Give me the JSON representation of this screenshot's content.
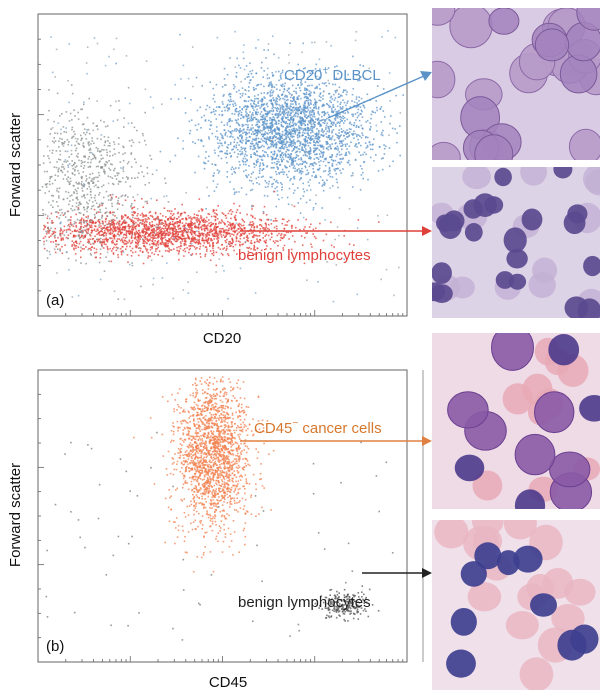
{
  "colors": {
    "dlbcl": "#5b93c8",
    "benign_red": "#e0403a",
    "cancer_orange": "#f2804f",
    "benign_dark": "#555555",
    "gray_events": "#8a8f8f",
    "axis": "#666666"
  },
  "chart_data": [
    {
      "type": "scatter",
      "panel_label": "(a)",
      "xlabel": "CD20",
      "ylabel": "Forward scatter",
      "x_scale": "log",
      "grid": false,
      "populations": [
        {
          "name": "CD20⁺ DLBCL",
          "label_main": "CD20",
          "label_sup": "+",
          "label_tail": " DLBCL",
          "color": "#5b93c8",
          "center": [
            0.68,
            0.38
          ],
          "spread": [
            0.11,
            0.09
          ]
        },
        {
          "name": "benign lymphocytes",
          "color": "#e0403a",
          "center": [
            0.34,
            0.72
          ],
          "spread": [
            0.17,
            0.035
          ]
        },
        {
          "name": "",
          "color": "#8a8f8f",
          "center": [
            0.12,
            0.55
          ],
          "spread": [
            0.08,
            0.12
          ]
        }
      ],
      "annotations": [
        {
          "text": "CD20⁺ DLBCL",
          "arrow_to": "top image (large DLBCL cells)"
        },
        {
          "text": "benign lymphocytes",
          "arrow_to": "second image (small lymphocytes)"
        }
      ]
    },
    {
      "type": "scatter",
      "panel_label": "(b)",
      "xlabel": "CD45",
      "ylabel": "Forward scatter",
      "x_scale": "log",
      "grid": false,
      "populations": [
        {
          "name": "CD45⁻ cancer cells",
          "label_main": "CD45",
          "label_sup": "−",
          "label_tail": " cancer cells",
          "color": "#f2804f",
          "center": [
            0.47,
            0.28
          ],
          "spread": [
            0.05,
            0.13
          ]
        },
        {
          "name": "benign lymphocytes",
          "color": "#555555",
          "center": [
            0.83,
            0.8
          ],
          "spread": [
            0.03,
            0.025
          ]
        }
      ],
      "annotations": [
        {
          "text": "CD45⁻ cancer cells",
          "arrow_to": "third image (large cancer cells)"
        },
        {
          "text": "benign lymphocytes",
          "arrow_to": "bottom image (lymphocytes)"
        }
      ]
    }
  ],
  "micrographs": [
    {
      "panel": "a",
      "cells": "large purple DLBCL cells",
      "bg": "#d9cbe3"
    },
    {
      "panel": "a",
      "cells": "small dark lymphocytes",
      "bg": "#ddd3e6"
    },
    {
      "panel": "b",
      "cells": "large cancer cells among red cells",
      "bg": "#efdbe6"
    },
    {
      "panel": "b",
      "cells": "small blue lymphocytes among red cells",
      "bg": "#f0e0ea"
    }
  ]
}
